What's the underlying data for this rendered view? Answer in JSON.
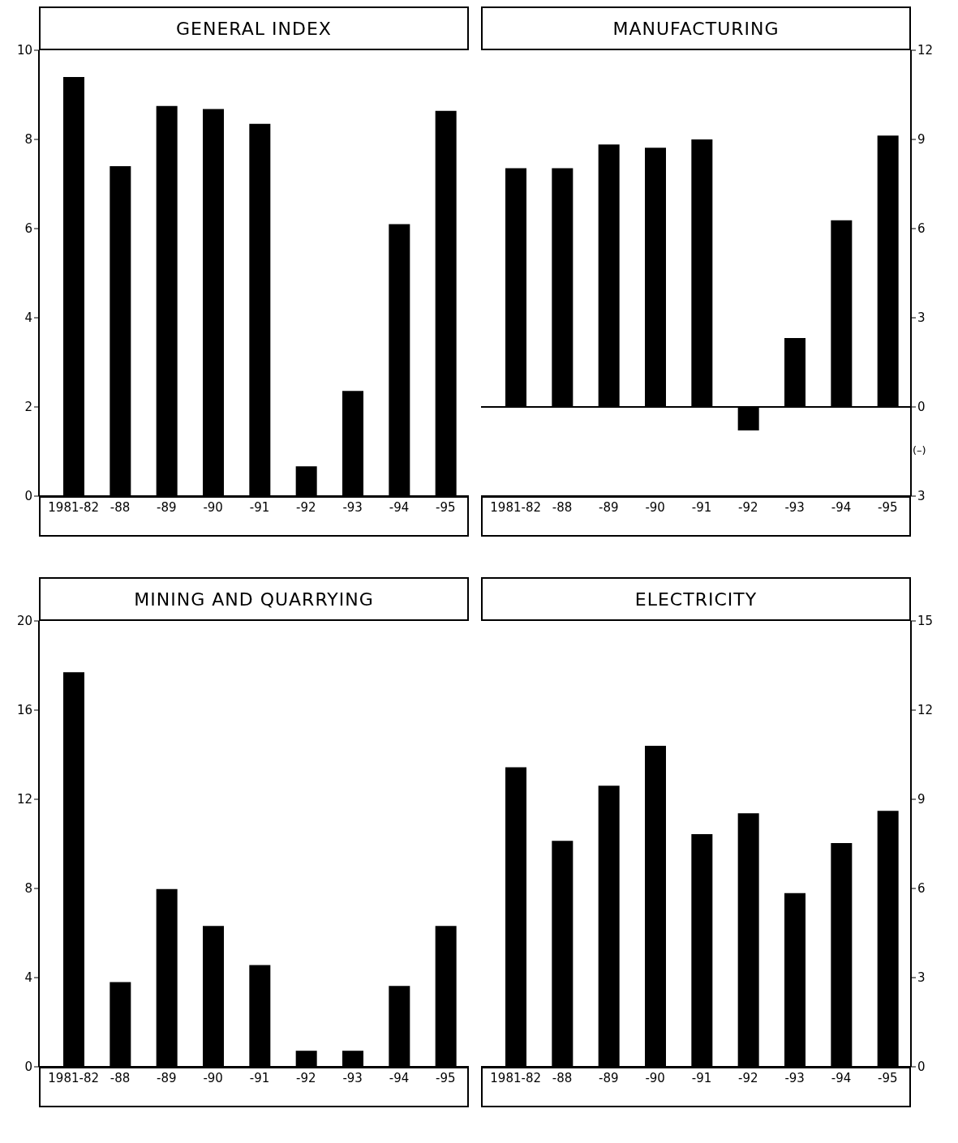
{
  "chart_data": [
    {
      "type": "bar",
      "title": "GENERAL INDEX",
      "categories": [
        "1981-82",
        "-88",
        "-89",
        "-90",
        "-91",
        "-92",
        "-93",
        "-94",
        "-95"
      ],
      "values": [
        9.4,
        7.4,
        8.75,
        8.68,
        8.35,
        0.67,
        2.36,
        6.1,
        8.64
      ],
      "color": "#000000",
      "ylim": [
        0,
        10
      ],
      "yticks": [
        0,
        2,
        4,
        6,
        8,
        10
      ]
    },
    {
      "type": "bar",
      "title": "MANUFACTURING",
      "categories": [
        "1981-82",
        "-88",
        "-89",
        "-90",
        "-91",
        "-92",
        "-93",
        "-94",
        "-95"
      ],
      "values": [
        8.03,
        8.03,
        8.83,
        8.72,
        9.0,
        -0.79,
        2.32,
        6.28,
        9.13
      ],
      "color": "#000000",
      "ylim": [
        -3,
        12
      ],
      "yticks": [
        {
          "value": -3,
          "label": "3"
        },
        0,
        3,
        6,
        9,
        12
      ],
      "ref_lines": [
        {
          "axis": "y",
          "value": 0,
          "label": null
        }
      ],
      "annotations": [
        "(–)"
      ]
    },
    {
      "type": "bar",
      "title": "MINING AND QUARRYING",
      "categories": [
        "1981-82",
        "-88",
        "-89",
        "-90",
        "-91",
        "-92",
        "-93",
        "-94",
        "-95"
      ],
      "values": [
        17.7,
        3.8,
        7.97,
        6.32,
        4.56,
        0.72,
        0.72,
        3.63,
        6.32
      ],
      "color": "#000000",
      "ylim": [
        0,
        20
      ],
      "yticks": [
        0,
        4,
        8,
        12,
        16,
        20
      ]
    },
    {
      "type": "bar",
      "title": "ELECTRICITY",
      "categories": [
        "1981-82",
        "-88",
        "-89",
        "-90",
        "-91",
        "-92",
        "-93",
        "-94",
        "-95"
      ],
      "values": [
        10.08,
        7.6,
        9.46,
        10.8,
        7.83,
        8.53,
        5.84,
        7.53,
        8.61
      ],
      "color": "#000000",
      "ylim": [
        0,
        15
      ],
      "yticks": [
        0,
        3,
        6,
        9,
        12,
        15
      ]
    }
  ]
}
